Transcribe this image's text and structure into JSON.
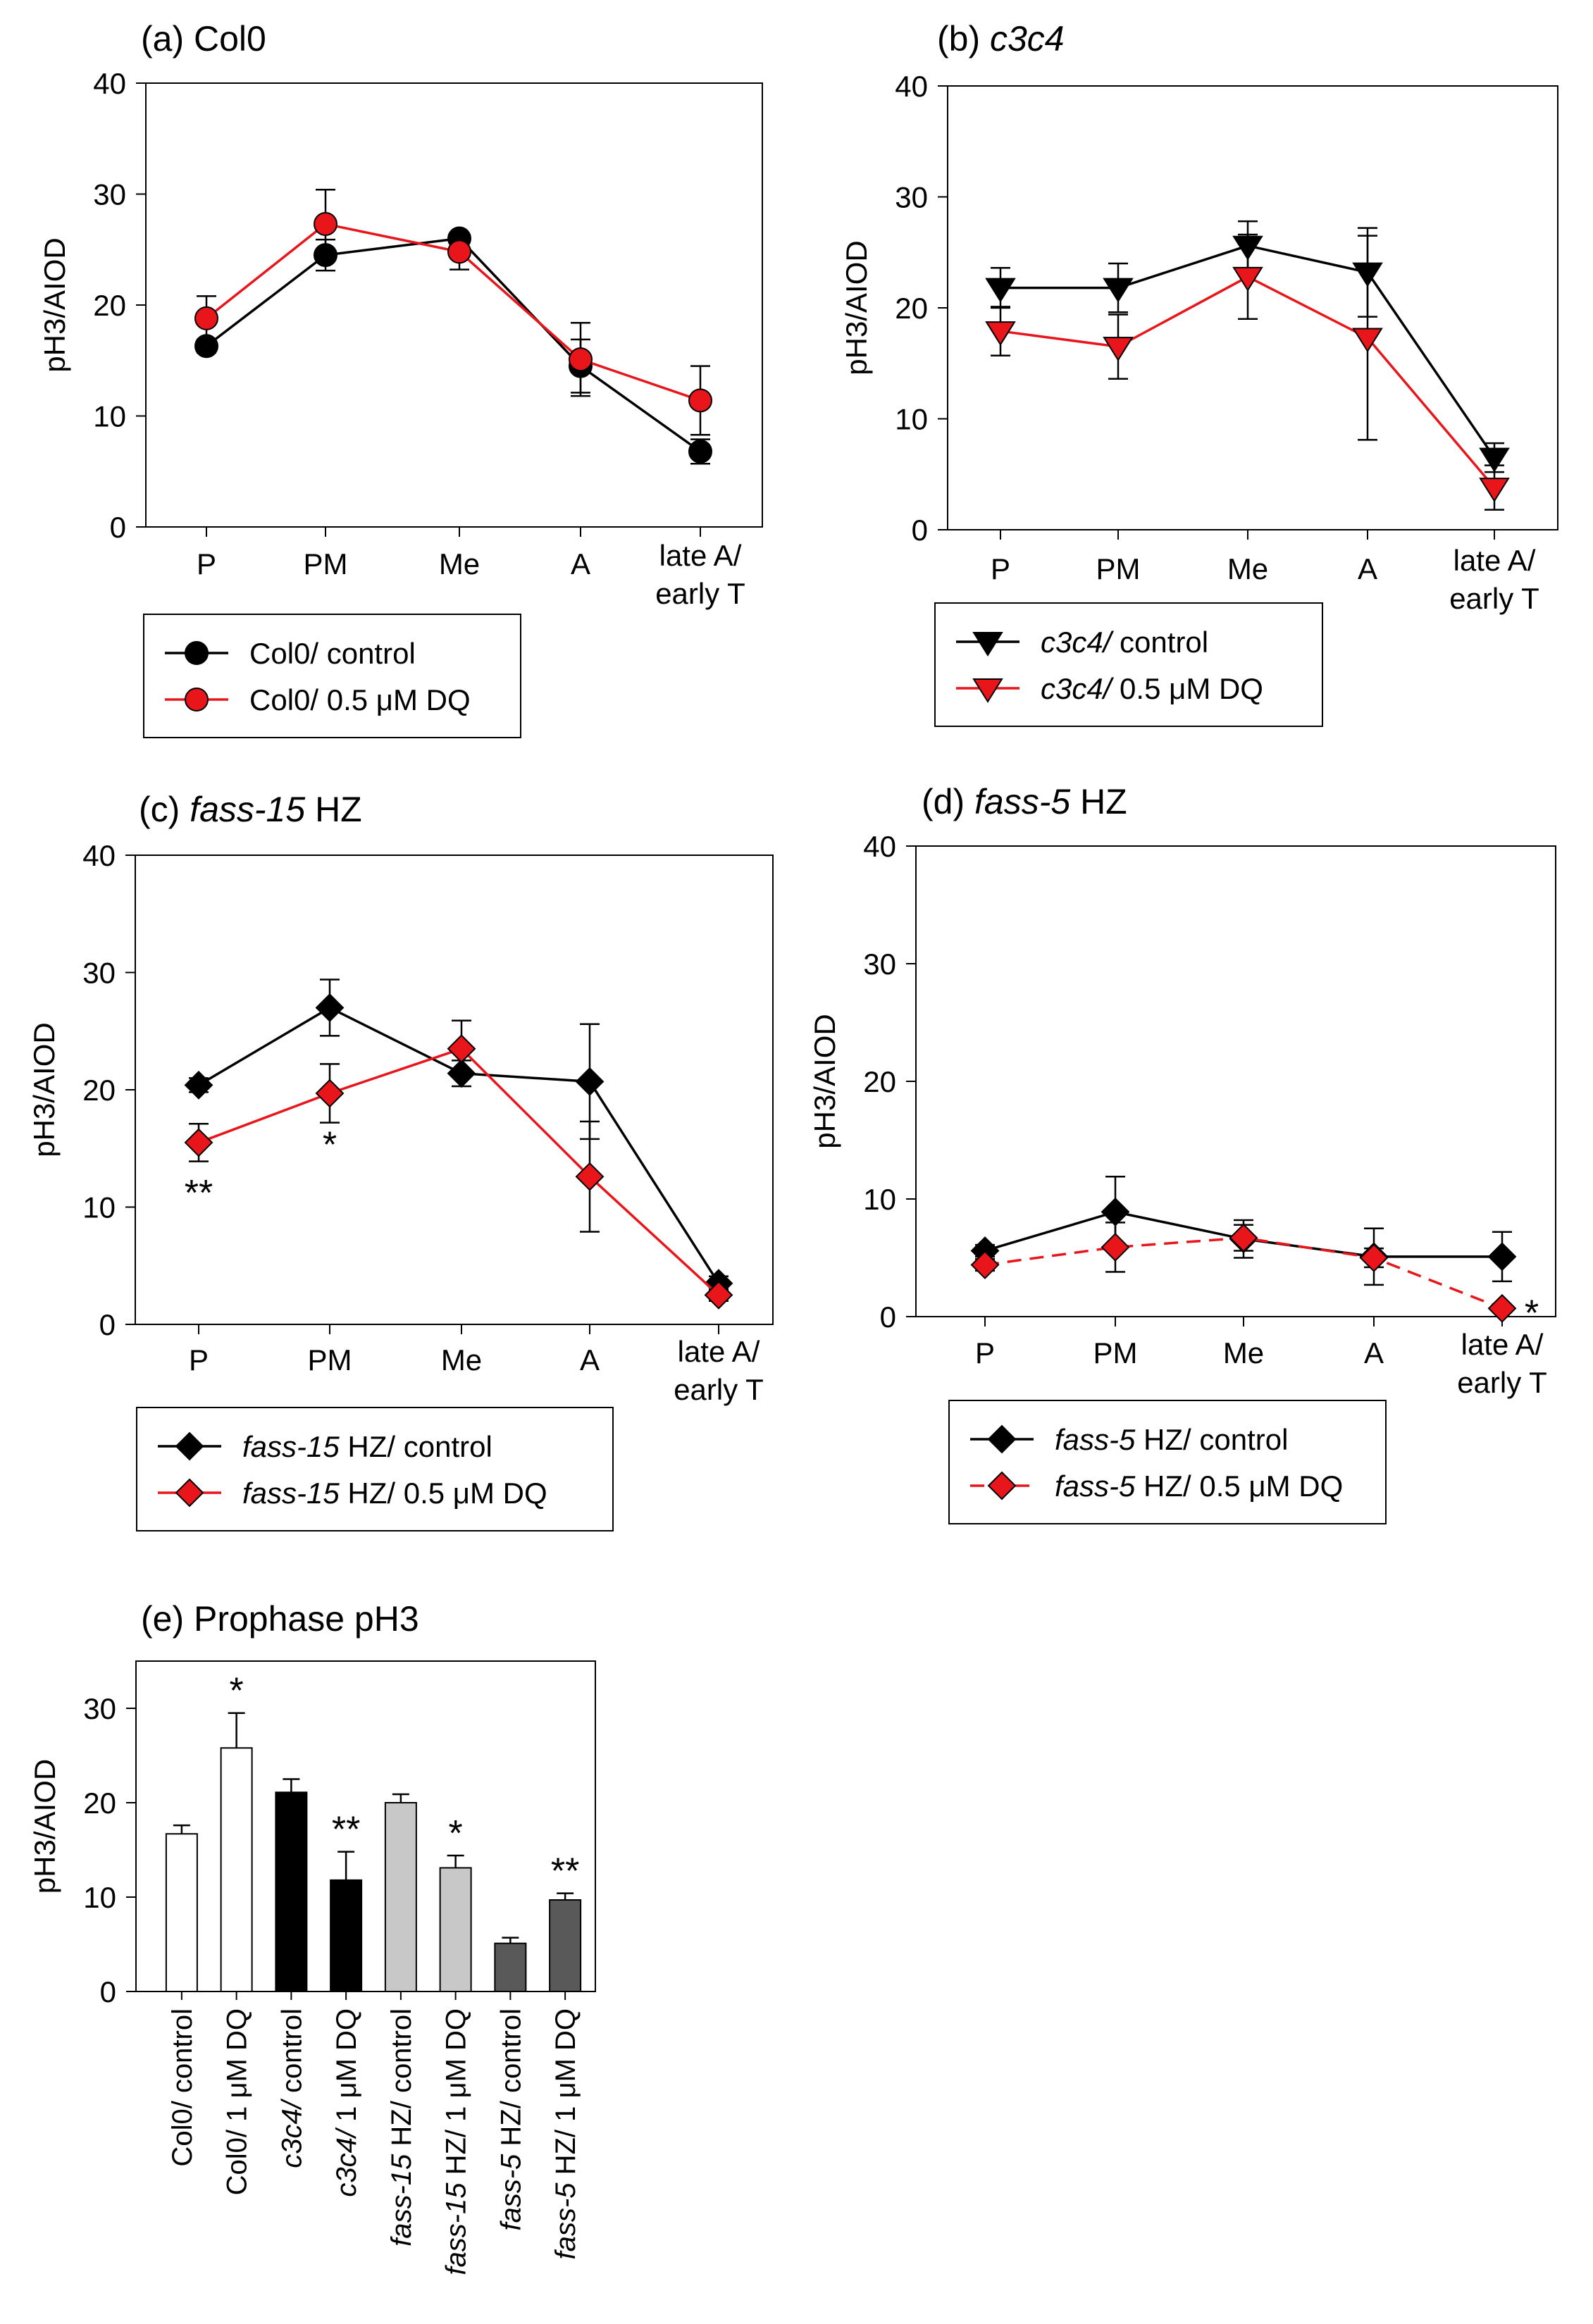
{
  "chart_data": [
    {
      "type": "line",
      "panel_label": "(a)",
      "title": "Col0",
      "title_italic": false,
      "xlabel": "",
      "ylabel": "pH3/AIOD",
      "ylim": [
        0,
        40
      ],
      "yticks": [
        "0",
        "10",
        "20",
        "30",
        "40"
      ],
      "categories": [
        "P",
        "PM",
        "Me",
        "A",
        "late A/ early T"
      ],
      "series": [
        {
          "name": "Col0/ control",
          "name_italic": "",
          "name_plain": "Col0/ control",
          "marker": "circle",
          "color": "#000000",
          "line_color": "#000000",
          "dashed": false,
          "values": [
            16.3,
            24.5,
            26,
            14.5,
            6.8
          ],
          "errors": [
            0.6,
            1.4,
            0.4,
            2.4,
            1.1
          ]
        },
        {
          "name": "Col0/ 0.5 μM DQ",
          "name_italic": "",
          "name_plain": "Col0/ 0.5 μM DQ",
          "marker": "circle",
          "color": "#e8151b",
          "line_color": "#e8151b",
          "dashed": false,
          "values": [
            18.8,
            27.3,
            24.8,
            15.1,
            11.4
          ],
          "errors": [
            2.0,
            3.1,
            1.6,
            3.3,
            3.1
          ]
        }
      ],
      "annotations": []
    },
    {
      "type": "line",
      "panel_label": "(b)",
      "title": "c3c4",
      "title_italic": true,
      "xlabel": "",
      "ylabel": "pH3/AIOD",
      "ylim": [
        0,
        40
      ],
      "yticks": [
        "0",
        "10",
        "20",
        "30",
        "40"
      ],
      "categories": [
        "P",
        "PM",
        "Me",
        "A",
        "late A/ early T"
      ],
      "series": [
        {
          "name": "c3c4/ control",
          "name_italic": "c3c4/",
          "name_plain": " control",
          "marker": "triangle-down",
          "color": "#000000",
          "line_color": "#000000",
          "dashed": false,
          "values": [
            21.8,
            21.8,
            25.6,
            23.2,
            6.5
          ],
          "errors": [
            1.8,
            2.2,
            2.2,
            4.0,
            1.3
          ]
        },
        {
          "name": "c3c4/ 0.5 μM DQ",
          "name_italic": "c3c4/",
          "name_plain": " 0.5 μM DQ",
          "marker": "triangle-down",
          "color": "#e8151b",
          "line_color": "#e8151b",
          "dashed": false,
          "values": [
            17.9,
            16.5,
            22.8,
            17.3,
            3.8
          ],
          "errors": [
            2.2,
            2.9,
            3.8,
            9.2,
            2.0
          ]
        }
      ],
      "annotations": []
    },
    {
      "type": "line",
      "panel_label": "(c)",
      "title": "fass-15 HZ",
      "title_italic_part": "fass-15",
      "title_plain_part": " HZ",
      "xlabel": "",
      "ylabel": "pH3/AIOD",
      "ylim": [
        0,
        40
      ],
      "yticks": [
        "0",
        "10",
        "20",
        "30",
        "40"
      ],
      "categories": [
        "P",
        "PM",
        "Me",
        "A",
        "late A/ early T"
      ],
      "series": [
        {
          "name": "fass-15 HZ/ control",
          "name_italic": "fass-15",
          "name_plain": " HZ/ control",
          "marker": "diamond",
          "color": "#000000",
          "line_color": "#000000",
          "dashed": false,
          "values": [
            20.4,
            27.0,
            21.4,
            20.7,
            3.5
          ],
          "errors": [
            0.6,
            2.4,
            1.1,
            4.9,
            0.6
          ]
        },
        {
          "name": "fass-15 HZ/ 0.5 μM DQ",
          "name_italic": "fass-15",
          "name_plain": " HZ/ 0.5 μM DQ",
          "marker": "diamond",
          "color": "#e8151b",
          "line_color": "#e8151b",
          "dashed": false,
          "values": [
            15.5,
            19.7,
            23.5,
            12.6,
            2.5
          ],
          "errors": [
            1.6,
            2.5,
            2.4,
            4.7,
            0.5
          ]
        }
      ],
      "annotations": [
        {
          "category": "P",
          "text": "**",
          "value": 11.6
        },
        {
          "category": "PM",
          "text": "*",
          "value": 15.7
        }
      ]
    },
    {
      "type": "line",
      "panel_label": "(d)",
      "title": "fass-5 HZ",
      "title_italic_part": "fass-5",
      "title_plain_part": " HZ",
      "xlabel": "",
      "ylabel": "pH3/AIOD",
      "ylim": [
        0,
        40
      ],
      "yticks": [
        "0",
        "10",
        "20",
        "30",
        "40"
      ],
      "categories": [
        "P",
        "PM",
        "Me",
        "A",
        "late A/ early T"
      ],
      "series": [
        {
          "name": "fass-5 HZ/ control",
          "name_italic": "fass-5",
          "name_plain": " HZ/ control",
          "marker": "diamond",
          "color": "#000000",
          "line_color": "#000000",
          "dashed": false,
          "values": [
            5.6,
            8.9,
            6.6,
            5.1,
            5.1
          ],
          "errors": [
            0.5,
            3.0,
            1.6,
            2.4,
            2.1
          ]
        },
        {
          "name": "fass-5 HZ/ 0.5 μM DQ",
          "name_italic": "fass-5",
          "name_plain": " HZ/ 0.5 μM DQ",
          "marker": "diamond",
          "color": "#e8151b",
          "line_color": "#e8151b",
          "dashed": true,
          "values": [
            4.4,
            5.9,
            6.7,
            5.0,
            0.7
          ],
          "errors": [
            0.5,
            2.1,
            1.1,
            0.8,
            0.3
          ]
        }
      ],
      "annotations": [
        {
          "category": "late A/ early T",
          "text": "*",
          "value": 0.8,
          "side": "right"
        }
      ]
    },
    {
      "type": "bar",
      "panel_label": "(e)",
      "title": "Prophase pH3",
      "xlabel": "",
      "ylabel": "pH3/AIOD",
      "ylim": [
        0,
        35
      ],
      "yticks": [
        "0",
        "10",
        "20",
        "30"
      ],
      "categories": [
        {
          "italic": "",
          "plain": "Col0/ control"
        },
        {
          "italic": "",
          "plain": "Col0/ 1 μM DQ"
        },
        {
          "italic": "c3c4/",
          "plain": " control"
        },
        {
          "italic": "c3c4/",
          "plain": " 1 μM DQ"
        },
        {
          "italic": "fass-15",
          "plain": " HZ/ control"
        },
        {
          "italic": "fass-15",
          "plain": " HZ/ 1 μM DQ"
        },
        {
          "italic": "fass-5",
          "plain": " HZ/ control"
        },
        {
          "italic": "fass-5",
          "plain": " HZ/ 1 μM DQ"
        }
      ],
      "values": [
        16.7,
        25.8,
        21.1,
        11.8,
        20.0,
        13.1,
        5.1,
        9.7
      ],
      "errors": [
        0.9,
        3.7,
        1.4,
        3.0,
        0.9,
        1.3,
        0.6,
        0.7
      ],
      "colors": [
        "#ffffff",
        "#ffffff",
        "#000000",
        "#000000",
        "#c8c8c8",
        "#c8c8c8",
        "#595959",
        "#595959"
      ],
      "significance": [
        "",
        "*",
        "",
        "**",
        "",
        "*",
        "",
        "**"
      ]
    }
  ]
}
